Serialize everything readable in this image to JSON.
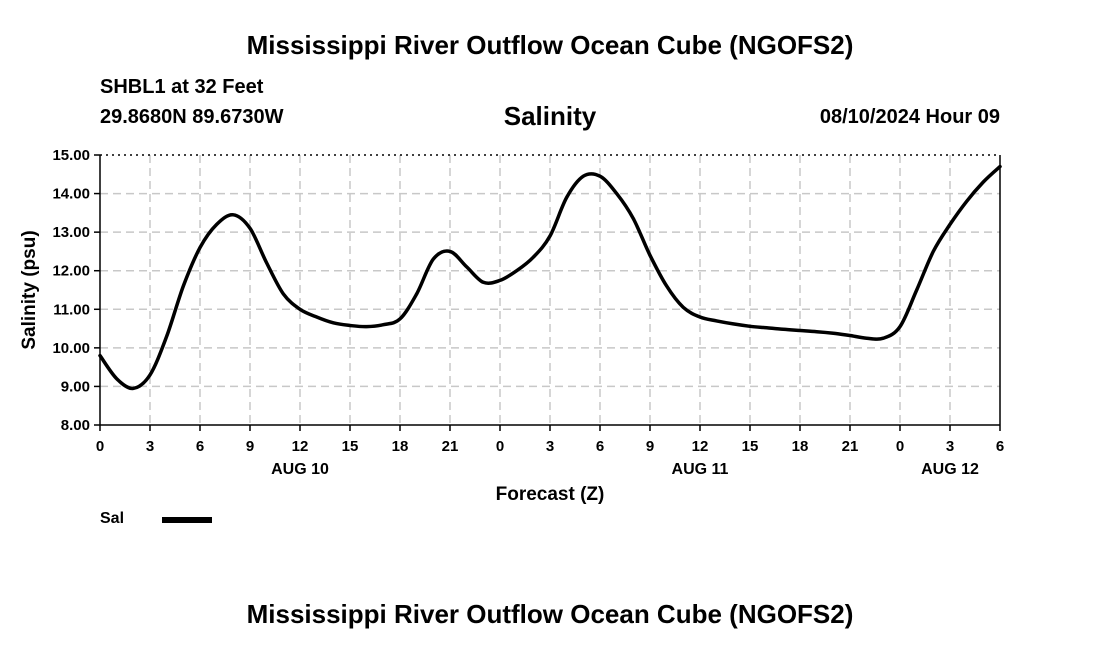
{
  "header": {
    "title": "Mississippi River Outflow Ocean Cube (NGOFS2)",
    "station": "SHBL1 at 32 Feet",
    "coords": "29.8680N  89.6730W",
    "variable": "Salinity",
    "datetime": "08/10/2024 Hour 09"
  },
  "footer": {
    "title": "Mississippi River Outflow Ocean Cube (NGOFS2)"
  },
  "legend": {
    "label": "Sal"
  },
  "colors": {
    "line": "#000000",
    "grid": "#c8c8c8",
    "frame": "#000000"
  },
  "chart_data": {
    "type": "line",
    "title": "Salinity",
    "xlabel": "Forecast (Z)",
    "ylabel": "Salinity (psu)",
    "xlim": [
      0,
      54
    ],
    "ylim": [
      8,
      15
    ],
    "grid": true,
    "legend": "bottom-left",
    "x_tick_hours": [
      0,
      3,
      6,
      9,
      12,
      15,
      18,
      21,
      24,
      27,
      30,
      33,
      36,
      39,
      42,
      45,
      48,
      51,
      54
    ],
    "x_tick_labels": [
      "0",
      "3",
      "6",
      "9",
      "12",
      "15",
      "18",
      "21",
      "0",
      "3",
      "6",
      "9",
      "12",
      "15",
      "18",
      "21",
      "0",
      "3",
      "6"
    ],
    "day_labels": [
      {
        "hour": 12,
        "label": "AUG 10"
      },
      {
        "hour": 36,
        "label": "AUG 11"
      },
      {
        "hour": 51,
        "label": "AUG 12"
      }
    ],
    "y_ticks": [
      8,
      9,
      10,
      11,
      12,
      13,
      14,
      15
    ],
    "y_tick_labels": [
      "8.00",
      "9.00",
      "10.00",
      "11.00",
      "12.00",
      "13.00",
      "14.00",
      "15.00"
    ],
    "series": [
      {
        "name": "Sal",
        "x": [
          0,
          1,
          2,
          3,
          4,
          5,
          6,
          7,
          8,
          9,
          10,
          11,
          12,
          13,
          14,
          15,
          16,
          17,
          18,
          19,
          20,
          21,
          22,
          23,
          24,
          25,
          26,
          27,
          28,
          29,
          30,
          31,
          32,
          33,
          34,
          35,
          36,
          37,
          38,
          39,
          40,
          41,
          42,
          43,
          44,
          45,
          46,
          47,
          48,
          49,
          50,
          51,
          52,
          53,
          54
        ],
        "values": [
          9.8,
          9.2,
          8.95,
          9.3,
          10.3,
          11.6,
          12.6,
          13.2,
          13.45,
          13.1,
          12.2,
          11.4,
          11.0,
          10.8,
          10.65,
          10.58,
          10.55,
          10.6,
          10.75,
          11.4,
          12.3,
          12.5,
          12.1,
          11.7,
          11.75,
          12.0,
          12.35,
          12.9,
          13.9,
          14.45,
          14.45,
          14.0,
          13.35,
          12.4,
          11.6,
          11.05,
          10.8,
          10.7,
          10.62,
          10.56,
          10.52,
          10.48,
          10.45,
          10.42,
          10.38,
          10.32,
          10.25,
          10.25,
          10.55,
          11.5,
          12.5,
          13.2,
          13.8,
          14.3,
          14.7
        ]
      }
    ]
  }
}
